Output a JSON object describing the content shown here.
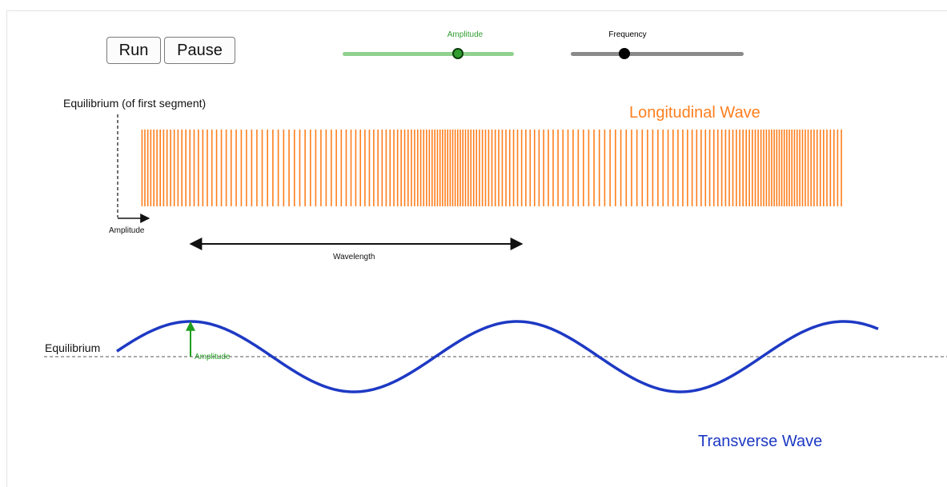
{
  "controls": {
    "run_label": "Run",
    "pause_label": "Pause",
    "amplitude_slider": {
      "label": "Amplitude",
      "value": 0.67,
      "color": "#2f9e2f",
      "track_color": "#8fd18f"
    },
    "frequency_slider": {
      "label": "Frequency",
      "value": 0.31,
      "color": "#000000",
      "track_color": "#8a8a8a"
    }
  },
  "longitudinal": {
    "title": "Longitudinal Wave",
    "equilibrium_label": "Equilibrium (of first segment)",
    "amplitude_label": "Amplitude",
    "wavelength_label": "Wavelength",
    "segment_count": 180,
    "color": "#ff7f1e"
  },
  "transverse": {
    "title": "Transverse Wave",
    "equilibrium_label": "Equilibrium",
    "amplitude_label": "Amplitude",
    "wave_color": "#1d39c4",
    "amplitude_color": "#1f9e1f"
  }
}
